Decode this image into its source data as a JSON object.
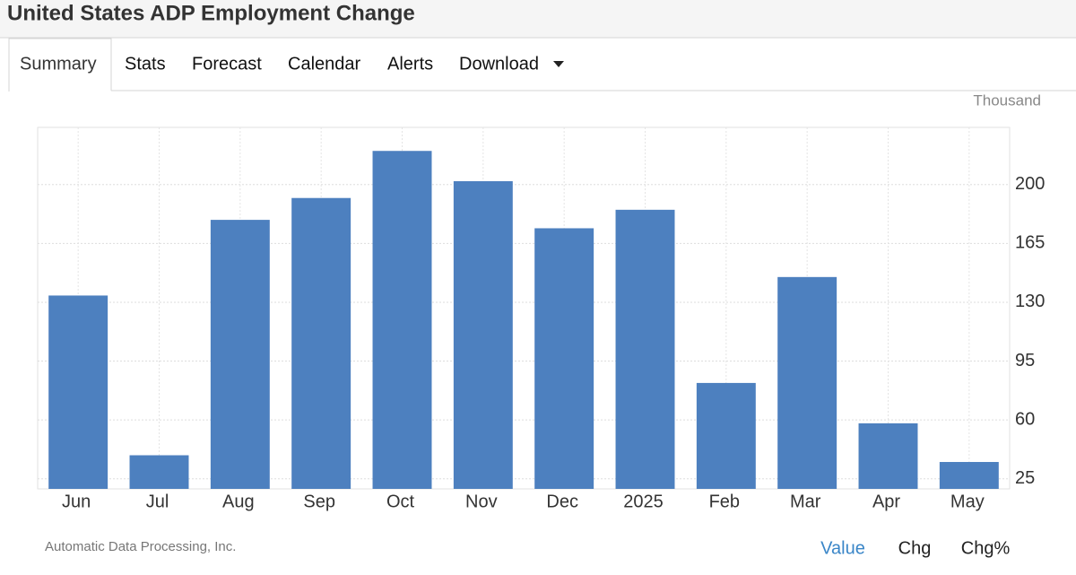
{
  "header": {
    "title": "United States ADP Employment Change"
  },
  "tabs": [
    "Summary",
    "Stats",
    "Forecast",
    "Calendar",
    "Alerts",
    "Download"
  ],
  "chart_data": {
    "type": "bar",
    "y_axis_label": "Thousand",
    "categories": [
      "Jun",
      "Jul",
      "Aug",
      "Sep",
      "Oct",
      "Nov",
      "Dec",
      "2025",
      "Feb",
      "Mar",
      "Apr",
      "May"
    ],
    "values": [
      134,
      39,
      179,
      192,
      220,
      202,
      174,
      185,
      82,
      145,
      58,
      35
    ],
    "color": "#4d80bf",
    "ylim": [
      19,
      234
    ],
    "yticks": [
      25,
      60,
      95,
      130,
      165,
      200
    ],
    "grid": true,
    "source": "Automatic Data Processing, Inc."
  },
  "toggles": [
    "Value",
    "Chg",
    "Chg%"
  ]
}
